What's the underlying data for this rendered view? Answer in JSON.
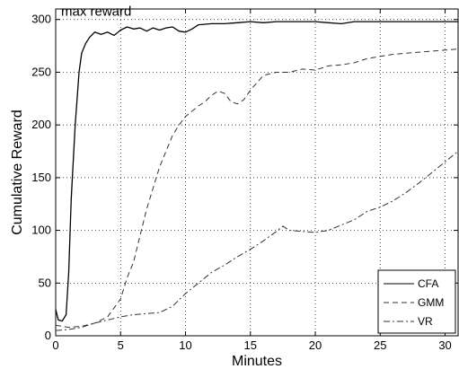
{
  "chart_data": {
    "type": "line",
    "title": "",
    "xlabel": "Minutes",
    "ylabel": "Cumulative Reward",
    "xlim": [
      0,
      31
    ],
    "ylim": [
      0,
      310
    ],
    "xticks": [
      0,
      5,
      10,
      15,
      20,
      25,
      30
    ],
    "yticks": [
      0,
      50,
      100,
      150,
      200,
      250,
      300
    ],
    "grid": true,
    "legend_position": "bottom-right",
    "annotation": {
      "text": "max reward",
      "y": 300
    },
    "series": [
      {
        "name": "CFA",
        "style": "solid",
        "color": "#000000",
        "x": [
          0,
          0.2,
          0.5,
          0.8,
          1.0,
          1.2,
          1.5,
          1.8,
          2.0,
          2.3,
          2.6,
          3.0,
          3.5,
          4.0,
          4.5,
          5.0,
          5.5,
          6.0,
          6.5,
          7.0,
          7.5,
          8.0,
          8.5,
          9.0,
          9.5,
          10.0,
          10.5,
          11.0,
          12.0,
          13.0,
          14.0,
          15.0,
          16.0,
          17.0,
          18.0,
          19.0,
          20.0,
          21.0,
          22.0,
          23.0,
          24.0,
          25.0,
          26.0,
          27.0,
          28.0,
          29.0,
          30.0,
          31.0
        ],
        "y": [
          25,
          15,
          14,
          20,
          60,
          130,
          200,
          250,
          268,
          277,
          283,
          288,
          286,
          288,
          285,
          290,
          293,
          291,
          292,
          289,
          292,
          290,
          292,
          293,
          289,
          288,
          291,
          295,
          296,
          296,
          297,
          298,
          297,
          298,
          298,
          298,
          298,
          297,
          296,
          298,
          298,
          298,
          298,
          298,
          298,
          298,
          298,
          298
        ]
      },
      {
        "name": "GMM",
        "style": "dashed",
        "color": "#333333",
        "x": [
          0,
          1,
          2,
          3,
          4,
          5,
          5.5,
          6,
          6.5,
          7,
          7.5,
          8,
          8.5,
          9,
          9.5,
          10,
          10.5,
          11,
          11.5,
          12,
          12.5,
          13,
          13.5,
          14,
          14.5,
          15,
          15.5,
          16,
          17,
          18,
          19,
          20,
          21,
          22,
          23,
          24,
          25,
          26,
          27,
          28,
          29,
          30,
          31
        ],
        "y": [
          10,
          8,
          9,
          12,
          18,
          35,
          55,
          70,
          95,
          120,
          140,
          160,
          175,
          190,
          200,
          208,
          213,
          218,
          222,
          228,
          232,
          230,
          222,
          220,
          224,
          233,
          240,
          247,
          250,
          250,
          253,
          252,
          256,
          257,
          259,
          263,
          265,
          267,
          268,
          269,
          270,
          271,
          272
        ]
      },
      {
        "name": "VR",
        "style": "dashdot",
        "color": "#333333",
        "x": [
          0,
          1,
          2,
          3,
          4,
          5,
          6,
          7,
          8,
          9,
          10,
          11,
          12,
          13,
          14,
          15,
          16,
          17,
          17.5,
          18,
          19,
          20,
          21,
          22,
          23,
          24,
          25,
          26,
          27,
          28,
          29,
          30,
          31
        ],
        "y": [
          5,
          6,
          8,
          12,
          15,
          18,
          20,
          21,
          22,
          28,
          40,
          50,
          60,
          67,
          75,
          82,
          90,
          99,
          104,
          100,
          99,
          98,
          100,
          105,
          110,
          118,
          122,
          128,
          136,
          145,
          155,
          165,
          175
        ]
      }
    ]
  }
}
